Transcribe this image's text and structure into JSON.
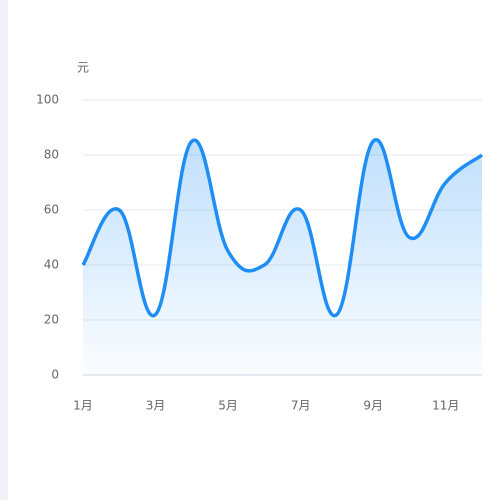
{
  "chart_data": {
    "type": "line",
    "y_axis_name": "元",
    "categories": [
      "1月",
      null,
      "3月",
      null,
      "5月",
      null,
      "7月",
      null,
      "9月",
      null,
      "11月",
      null
    ],
    "series": [
      {
        "values": [
          40,
          60,
          22,
          85,
          45,
          40,
          60,
          22,
          85,
          50,
          70,
          80
        ],
        "color": "#1e8ef5"
      }
    ],
    "ylim": [
      0,
      100
    ],
    "yticks": [
      0,
      20,
      40,
      60,
      80,
      100
    ],
    "grid": true,
    "smooth": true,
    "area": true
  }
}
